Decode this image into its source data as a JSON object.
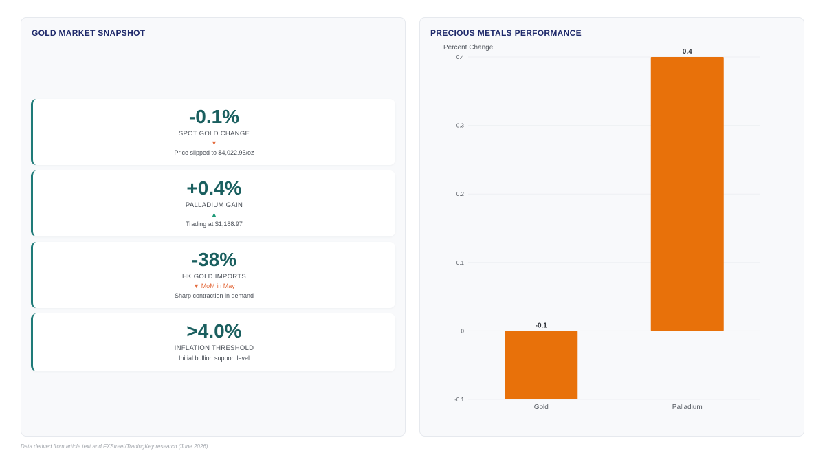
{
  "left_panel": {
    "title": "GOLD MARKET SNAPSHOT",
    "cards": [
      {
        "value": "-0.1%",
        "label": "SPOT GOLD CHANGE",
        "trend": "▼",
        "trend_dir": "down",
        "note": "Price slipped to $4,022.95/oz"
      },
      {
        "value": "+0.4%",
        "label": "PALLADIUM GAIN",
        "trend": "▲",
        "trend_dir": "up",
        "note": "Trading at $1,188.97"
      },
      {
        "value": "-38%",
        "label": "HK GOLD IMPORTS",
        "trend": "▼ MoM in May",
        "trend_dir": "down",
        "note": "Sharp contraction in demand"
      },
      {
        "value": ">4.0%",
        "label": "INFLATION THRESHOLD",
        "trend": "",
        "trend_dir": "",
        "note": "Initial bullion support level"
      }
    ]
  },
  "right_panel": {
    "title": "PRECIOUS METALS PERFORMANCE"
  },
  "footer": {
    "source": "Data derived from article text and FXStreet/TradingKey research (June 2026)"
  },
  "colors": {
    "bar": "#e8710a",
    "title": "#1f2a6b",
    "stat_value": "#1a5f5f",
    "accent_border": "#1e7a78",
    "trend_down": "#e36a3c",
    "trend_up": "#1e9a78"
  },
  "chart_data": {
    "type": "bar",
    "title": "PRECIOUS METALS PERFORMANCE",
    "categories": [
      "Gold",
      "Palladium"
    ],
    "values": [
      -0.1,
      0.4
    ],
    "value_labels": [
      "-0.1",
      "0.4"
    ],
    "ylabel": "Percent Change",
    "xlabel": "",
    "ylim": [
      -0.1,
      0.4
    ],
    "yticks": [
      -0.1,
      0,
      0.1,
      0.2,
      0.3,
      0.4
    ],
    "ytick_labels": [
      "-0.1",
      "0",
      "0.1",
      "0.2",
      "0.3",
      "0.4"
    ],
    "grid": true,
    "legend": "none"
  }
}
